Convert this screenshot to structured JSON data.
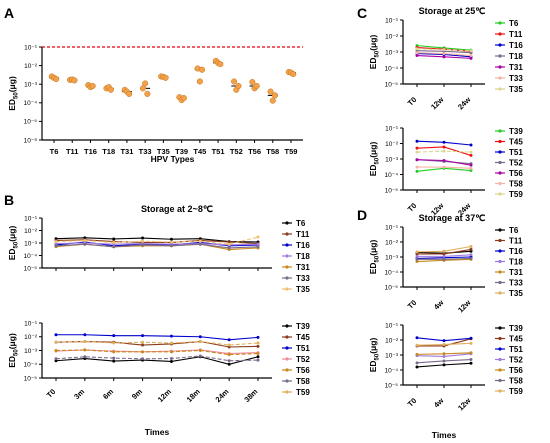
{
  "figure": {
    "panels": [
      "A",
      "B",
      "C",
      "D"
    ]
  },
  "chart_data": [
    {
      "id": "A",
      "type": "scatter",
      "title": "",
      "xlabel": "HPV Types",
      "ylabel": "ED50(μg)",
      "ylabel_main": "ED",
      "ylabel_sub": "50",
      "ylabel_unit": "(μg)",
      "ylog": true,
      "ylim": [
        1e-06,
        0.1
      ],
      "yticks": [
        "10⁻⁶",
        "10⁻⁵",
        "10⁻⁴",
        "10⁻³",
        "10⁻²",
        "10⁻¹"
      ],
      "categories": [
        "T6",
        "T11",
        "T16",
        "T18",
        "T31",
        "T33",
        "T35",
        "T39",
        "T45",
        "T51",
        "T52",
        "T56",
        "T58",
        "T59"
      ],
      "values": [
        [
          0.0026,
          0.0022,
          0.0019
        ],
        [
          0.0017,
          0.0018,
          0.0016
        ],
        [
          0.0009,
          0.0007,
          0.0008
        ],
        [
          0.0006,
          0.0007,
          0.0005
        ],
        [
          0.0005,
          0.0004,
          0.0003
        ],
        [
          0.0006,
          0.0011,
          0.0003
        ],
        [
          0.0026,
          0.0025,
          0.0022
        ],
        [
          0.0002,
          0.00014,
          0.00018
        ],
        [
          0.007,
          0.0014,
          0.006
        ],
        [
          0.018,
          0.014,
          0.012
        ],
        [
          0.0014,
          0.0005,
          0.0008
        ],
        [
          0.0013,
          0.0006,
          0.0008
        ],
        [
          0.0004,
          0.00013,
          0.00025
        ],
        [
          0.0045,
          0.0042,
          0.0035
        ]
      ],
      "reference_line": 0.1,
      "reference_color": "#e8000b",
      "marker_color": "#f2a04a"
    },
    {
      "id": "B-top",
      "type": "line",
      "title": "Storage at 2~8℃",
      "ylabel": "ED50(μg)",
      "ylabel_main": "ED",
      "ylabel_sub": "50",
      "ylabel_unit": "(μg)",
      "ylog": true,
      "ylim": [
        1e-05,
        0.1
      ],
      "yticks": [
        "10⁻⁵",
        "10⁻⁴",
        "10⁻³",
        "10⁻²",
        "10⁻¹"
      ],
      "categories": [
        "T0",
        "3m",
        "6m",
        "9m",
        "12m",
        "18m",
        "24m",
        "38m"
      ],
      "series": [
        {
          "name": "T6",
          "color": "#000000",
          "dash": "",
          "values": [
            0.0022,
            0.0026,
            0.0021,
            0.0025,
            0.002,
            0.0022,
            0.0013,
            0.0012
          ]
        },
        {
          "name": "T11",
          "color": "#8b3a1a",
          "dash": "",
          "values": [
            0.0016,
            0.0018,
            0.0013,
            0.0011,
            0.0011,
            0.0016,
            0.0012,
            0.0009
          ]
        },
        {
          "name": "T16",
          "color": "#0000cc",
          "dash": "",
          "values": [
            0.0007,
            0.0012,
            0.0006,
            0.0008,
            0.0007,
            0.0011,
            0.0006,
            0.0007
          ]
        },
        {
          "name": "T18",
          "color": "#a07ae0",
          "dash": "",
          "values": [
            0.0009,
            0.001,
            0.0008,
            0.0009,
            0.0008,
            0.0009,
            0.0007,
            0.0008
          ]
        },
        {
          "name": "T31",
          "color": "#c88a1a",
          "dash": "",
          "values": [
            0.0005,
            0.0008,
            0.0005,
            0.0006,
            0.0006,
            0.0008,
            0.0003,
            0.0004
          ]
        },
        {
          "name": "T33",
          "color": "#7a6a8a",
          "dash": "",
          "values": [
            0.0006,
            0.0008,
            0.0005,
            0.0007,
            0.0006,
            0.0008,
            0.0004,
            0.0005
          ]
        },
        {
          "name": "T35",
          "color": "#f0c070",
          "dash": "4,2",
          "values": [
            0.0013,
            0.0016,
            0.0011,
            0.0014,
            0.0012,
            0.0014,
            0.0008,
            0.003
          ]
        }
      ]
    },
    {
      "id": "B-bottom",
      "type": "line",
      "xlabel": "Times",
      "ylabel": "ED50(μg)",
      "ylabel_main": "ED",
      "ylabel_sub": "50",
      "ylabel_unit": "(μg)",
      "ylog": true,
      "ylim": [
        1e-05,
        0.1
      ],
      "yticks": [
        "10⁻⁵",
        "10⁻⁴",
        "10⁻³",
        "10⁻²",
        "10⁻¹"
      ],
      "categories": [
        "T0",
        "3m",
        "6m",
        "9m",
        "12m",
        "18m",
        "24m",
        "38m"
      ],
      "series": [
        {
          "name": "T39",
          "color": "#000000",
          "dash": "",
          "values": [
            0.00018,
            0.00026,
            0.00017,
            0.0002,
            0.00016,
            0.00035,
            0.0001,
            0.00035
          ]
        },
        {
          "name": "T45",
          "color": "#8b3a1a",
          "dash": "",
          "values": [
            0.004,
            0.0045,
            0.004,
            0.0025,
            0.003,
            0.0045,
            0.0018,
            0.002
          ]
        },
        {
          "name": "T51",
          "color": "#0000cc",
          "dash": "",
          "values": [
            0.014,
            0.014,
            0.012,
            0.012,
            0.011,
            0.01,
            0.006,
            0.009
          ]
        },
        {
          "name": "T52",
          "color": "#f08a9a",
          "dash": "",
          "values": [
            0.0009,
            0.0011,
            0.0009,
            0.0008,
            0.0009,
            0.0011,
            0.0006,
            0.0007
          ]
        },
        {
          "name": "T56",
          "color": "#c88a1a",
          "dash": "4,2",
          "values": [
            0.001,
            0.0011,
            0.0008,
            0.0008,
            0.0008,
            0.001,
            0.0005,
            0.0006
          ]
        },
        {
          "name": "T58",
          "color": "#7a6a8a",
          "dash": "4,2",
          "values": [
            0.00025,
            0.00035,
            0.00028,
            0.00025,
            0.00026,
            0.0004,
            0.00018,
            0.0002
          ]
        },
        {
          "name": "T59",
          "color": "#e0b060",
          "dash": "4,2",
          "values": [
            0.004,
            0.0045,
            0.0035,
            0.004,
            0.0035,
            0.0045,
            0.0025,
            0.0035
          ]
        }
      ]
    },
    {
      "id": "C-top",
      "type": "line",
      "title": "Storage at 25℃",
      "ylabel": "ED50(μg)",
      "ylabel_main": "ED",
      "ylabel_sub": "50",
      "ylabel_unit": "(μg)",
      "ylog": true,
      "ylim": [
        1e-05,
        0.1
      ],
      "yticks": [
        "10⁻⁵",
        "10⁻⁴",
        "10⁻³",
        "10⁻²",
        "10⁻¹"
      ],
      "categories": [
        "T0",
        "12w",
        "24w"
      ],
      "series": [
        {
          "name": "T6",
          "color": "#22cc22",
          "dash": "",
          "values": [
            0.0025,
            0.0018,
            0.0013
          ]
        },
        {
          "name": "T11",
          "color": "#ee1111",
          "dash": "",
          "values": [
            0.0019,
            0.0015,
            0.0011
          ]
        },
        {
          "name": "T16",
          "color": "#0000cc",
          "dash": "",
          "values": [
            0.0008,
            0.0007,
            0.0005
          ]
        },
        {
          "name": "T18",
          "color": "#7a6a8a",
          "dash": "",
          "values": [
            0.0012,
            0.0011,
            0.0009
          ]
        },
        {
          "name": "T31",
          "color": "#aa00aa",
          "dash": "",
          "values": [
            0.0006,
            0.0005,
            0.0004
          ]
        },
        {
          "name": "T33",
          "color": "#f5b5a5",
          "dash": "",
          "values": [
            0.0009,
            0.0008,
            0.0006
          ]
        },
        {
          "name": "T35",
          "color": "#d8d890",
          "dash": "4,2",
          "values": [
            0.0016,
            0.0014,
            0.0012
          ]
        }
      ]
    },
    {
      "id": "C-bottom",
      "type": "line",
      "ylabel": "ED50(μg)",
      "ylabel_main": "ED",
      "ylabel_sub": "50",
      "ylabel_unit": "(μg)",
      "ylog": true,
      "ylim": [
        1e-05,
        0.1
      ],
      "yticks": [
        "10⁻⁵",
        "10⁻⁴",
        "10⁻³",
        "10⁻²",
        "10⁻¹"
      ],
      "categories": [
        "T0",
        "12w",
        "24w"
      ],
      "series": [
        {
          "name": "T39",
          "color": "#22cc22",
          "dash": "",
          "values": [
            0.00016,
            0.00025,
            0.00018
          ]
        },
        {
          "name": "T45",
          "color": "#ee1111",
          "dash": "",
          "values": [
            0.005,
            0.006,
            0.0017
          ]
        },
        {
          "name": "T51",
          "color": "#0000cc",
          "dash": "",
          "values": [
            0.014,
            0.012,
            0.008
          ]
        },
        {
          "name": "T52",
          "color": "#7a6a8a",
          "dash": "",
          "values": [
            0.0009,
            0.0007,
            0.0005
          ]
        },
        {
          "name": "T56",
          "color": "#aa00aa",
          "dash": "",
          "values": [
            0.0009,
            0.0008,
            0.0004
          ]
        },
        {
          "name": "T58",
          "color": "#f5b5a5",
          "dash": "",
          "values": [
            0.0003,
            0.0003,
            0.00025
          ]
        },
        {
          "name": "T59",
          "color": "#d8d890",
          "dash": "4,2",
          "values": [
            0.0028,
            0.0032,
            0.0028
          ]
        }
      ]
    },
    {
      "id": "D-top",
      "type": "line",
      "title": "Storage at 37℃",
      "ylabel": "ED50(μg)",
      "ylabel_main": "ED",
      "ylabel_sub": "50",
      "ylabel_unit": "(μg)",
      "ylog": true,
      "ylim": [
        1e-05,
        0.1
      ],
      "yticks": [
        "10⁻⁵",
        "10⁻⁴",
        "10⁻³",
        "10⁻²",
        "10⁻¹"
      ],
      "categories": [
        "T0",
        "4w",
        "12w"
      ],
      "series": [
        {
          "name": "T6",
          "color": "#000000",
          "dash": "",
          "values": [
            0.002,
            0.0018,
            0.0024
          ]
        },
        {
          "name": "T11",
          "color": "#8b3a1a",
          "dash": "",
          "values": [
            0.0016,
            0.0016,
            0.0032
          ]
        },
        {
          "name": "T16",
          "color": "#0000cc",
          "dash": "",
          "values": [
            0.0008,
            0.0009,
            0.001
          ]
        },
        {
          "name": "T18",
          "color": "#a07ae0",
          "dash": "",
          "values": [
            0.0011,
            0.0011,
            0.0014
          ]
        },
        {
          "name": "T31",
          "color": "#c88a1a",
          "dash": "",
          "values": [
            0.0005,
            0.0006,
            0.0007
          ]
        },
        {
          "name": "T33",
          "color": "#7a6a8a",
          "dash": "",
          "values": [
            0.0007,
            0.0007,
            0.0008
          ]
        },
        {
          "name": "T35",
          "color": "#e0b060",
          "dash": "",
          "values": [
            0.0022,
            0.0024,
            0.005
          ]
        }
      ]
    },
    {
      "id": "D-bottom",
      "type": "line",
      "xlabel": "Times",
      "ylabel": "ED50(μg)",
      "ylabel_main": "ED",
      "ylabel_sub": "50",
      "ylabel_unit": "(μg)",
      "ylog": true,
      "ylim": [
        1e-05,
        0.1
      ],
      "yticks": [
        "10⁻⁵",
        "10⁻⁴",
        "10⁻³",
        "10⁻²",
        "10⁻¹"
      ],
      "categories": [
        "T0",
        "4w",
        "12w"
      ],
      "series": [
        {
          "name": "T39",
          "color": "#000000",
          "dash": "",
          "values": [
            0.00016,
            0.00022,
            0.00028
          ]
        },
        {
          "name": "T45",
          "color": "#8b3a1a",
          "dash": "",
          "values": [
            0.004,
            0.004,
            0.012
          ]
        },
        {
          "name": "T51",
          "color": "#0000cc",
          "dash": "",
          "values": [
            0.014,
            0.009,
            0.013
          ]
        },
        {
          "name": "T52",
          "color": "#a07ae0",
          "dash": "",
          "values": [
            0.0009,
            0.0008,
            0.0012
          ]
        },
        {
          "name": "T56",
          "color": "#c88a1a",
          "dash": "",
          "values": [
            0.0011,
            0.0012,
            0.0014
          ]
        },
        {
          "name": "T58",
          "color": "#7a6a8a",
          "dash": "",
          "values": [
            0.0003,
            0.0004,
            0.0005
          ]
        },
        {
          "name": "T59",
          "color": "#e0b060",
          "dash": "",
          "values": [
            0.0045,
            0.005,
            0.006
          ]
        }
      ]
    }
  ]
}
